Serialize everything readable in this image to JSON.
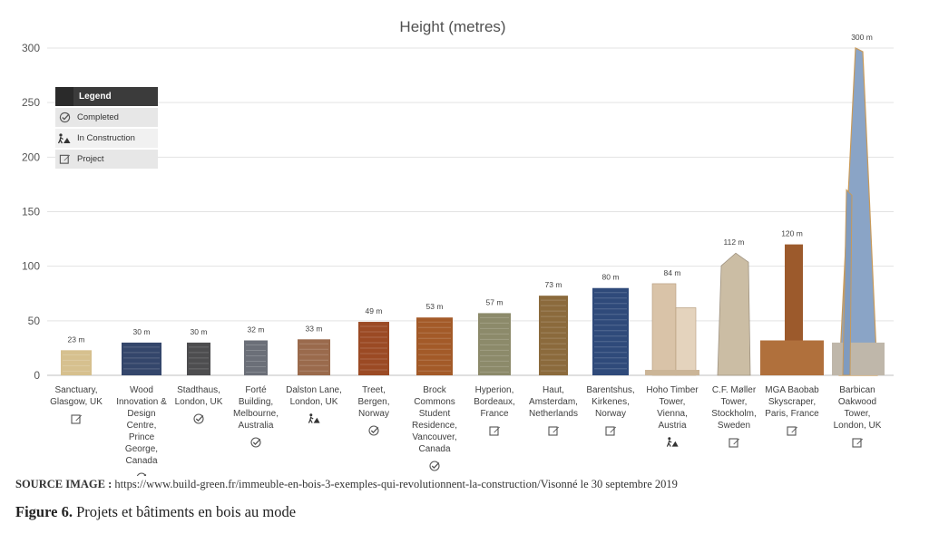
{
  "chart_data": {
    "type": "bar",
    "title": "Height (metres)",
    "ylim": [
      0,
      300
    ],
    "yticks": [
      "0",
      "50",
      "100",
      "150",
      "200",
      "250",
      "300"
    ],
    "grid": true,
    "legend_position": "top-left",
    "categories": [
      [
        "Sanctuary,",
        "Glasgow, UK"
      ],
      [
        "Wood",
        "Innovation &",
        "Design",
        "Centre,",
        "Prince",
        "George,",
        "Canada"
      ],
      [
        "Stadthaus,",
        "London, UK"
      ],
      [
        "Forté",
        "Building,",
        "Melbourne,",
        "Australia"
      ],
      [
        "Dalston Lane,",
        "London, UK"
      ],
      [
        "Treet,",
        "Bergen,",
        "Norway"
      ],
      [
        "Brock",
        "Commons",
        "Student",
        "Residence,",
        "Vancouver,",
        "Canada"
      ],
      [
        "Hyperion,",
        "Bordeaux,",
        "France"
      ],
      [
        "Haut,",
        "Amsterdam,",
        "Netherlands"
      ],
      [
        "Barentshus,",
        "Kirkenes,",
        "Norway"
      ],
      [
        "Hoho Timber",
        "Tower,",
        "Vienna,",
        "Austria"
      ],
      [
        "C.F. Møller",
        "Tower,",
        "Stockholm,",
        "Sweden"
      ],
      [
        "MGA Baobab",
        "Skyscraper,",
        "Paris, France"
      ],
      [
        "Barbican",
        "Oakwood",
        "Tower,",
        "London, UK"
      ]
    ],
    "values": [
      23,
      30,
      30,
      32,
      33,
      49,
      53,
      57,
      73,
      80,
      84,
      112,
      120,
      300
    ],
    "value_labels": [
      "23 m",
      "30 m",
      "30 m",
      "32 m",
      "33 m",
      "49 m",
      "53 m",
      "57 m",
      "73 m",
      "80 m",
      "84 m",
      "112 m",
      "120 m",
      "300 m"
    ],
    "status": [
      "project",
      "completed",
      "completed",
      "completed",
      "construction",
      "completed",
      "completed",
      "project",
      "project",
      "project",
      "construction",
      "project",
      "project",
      "project"
    ],
    "colors": [
      "#d6c08e",
      "#34466b",
      "#4d4d4f",
      "#6b6f78",
      "#9a6a4c",
      "#9b4a24",
      "#a35a28",
      "#8c8a6a",
      "#8b6a3c",
      "#2f4a7a",
      "#d9c3a8",
      "#cbbda4",
      "#b0703c",
      "#8aa4c6"
    ]
  },
  "legend": {
    "title": "Legend",
    "items": [
      {
        "label": "Completed",
        "icon": "check-icon"
      },
      {
        "label": "In Construction",
        "icon": "construction-icon"
      },
      {
        "label": "Project",
        "icon": "edit-icon"
      }
    ]
  },
  "source": {
    "label": "SOURCE IMAGE :",
    "text": "https://www.build-green.fr/immeuble-en-bois-3-exemples-qui-revolutionnent-la-construction/Visonné le 30 septembre 2019"
  },
  "caption": {
    "label": "Figure 6.",
    "text": "Projets et bâtiments en bois au mode"
  }
}
